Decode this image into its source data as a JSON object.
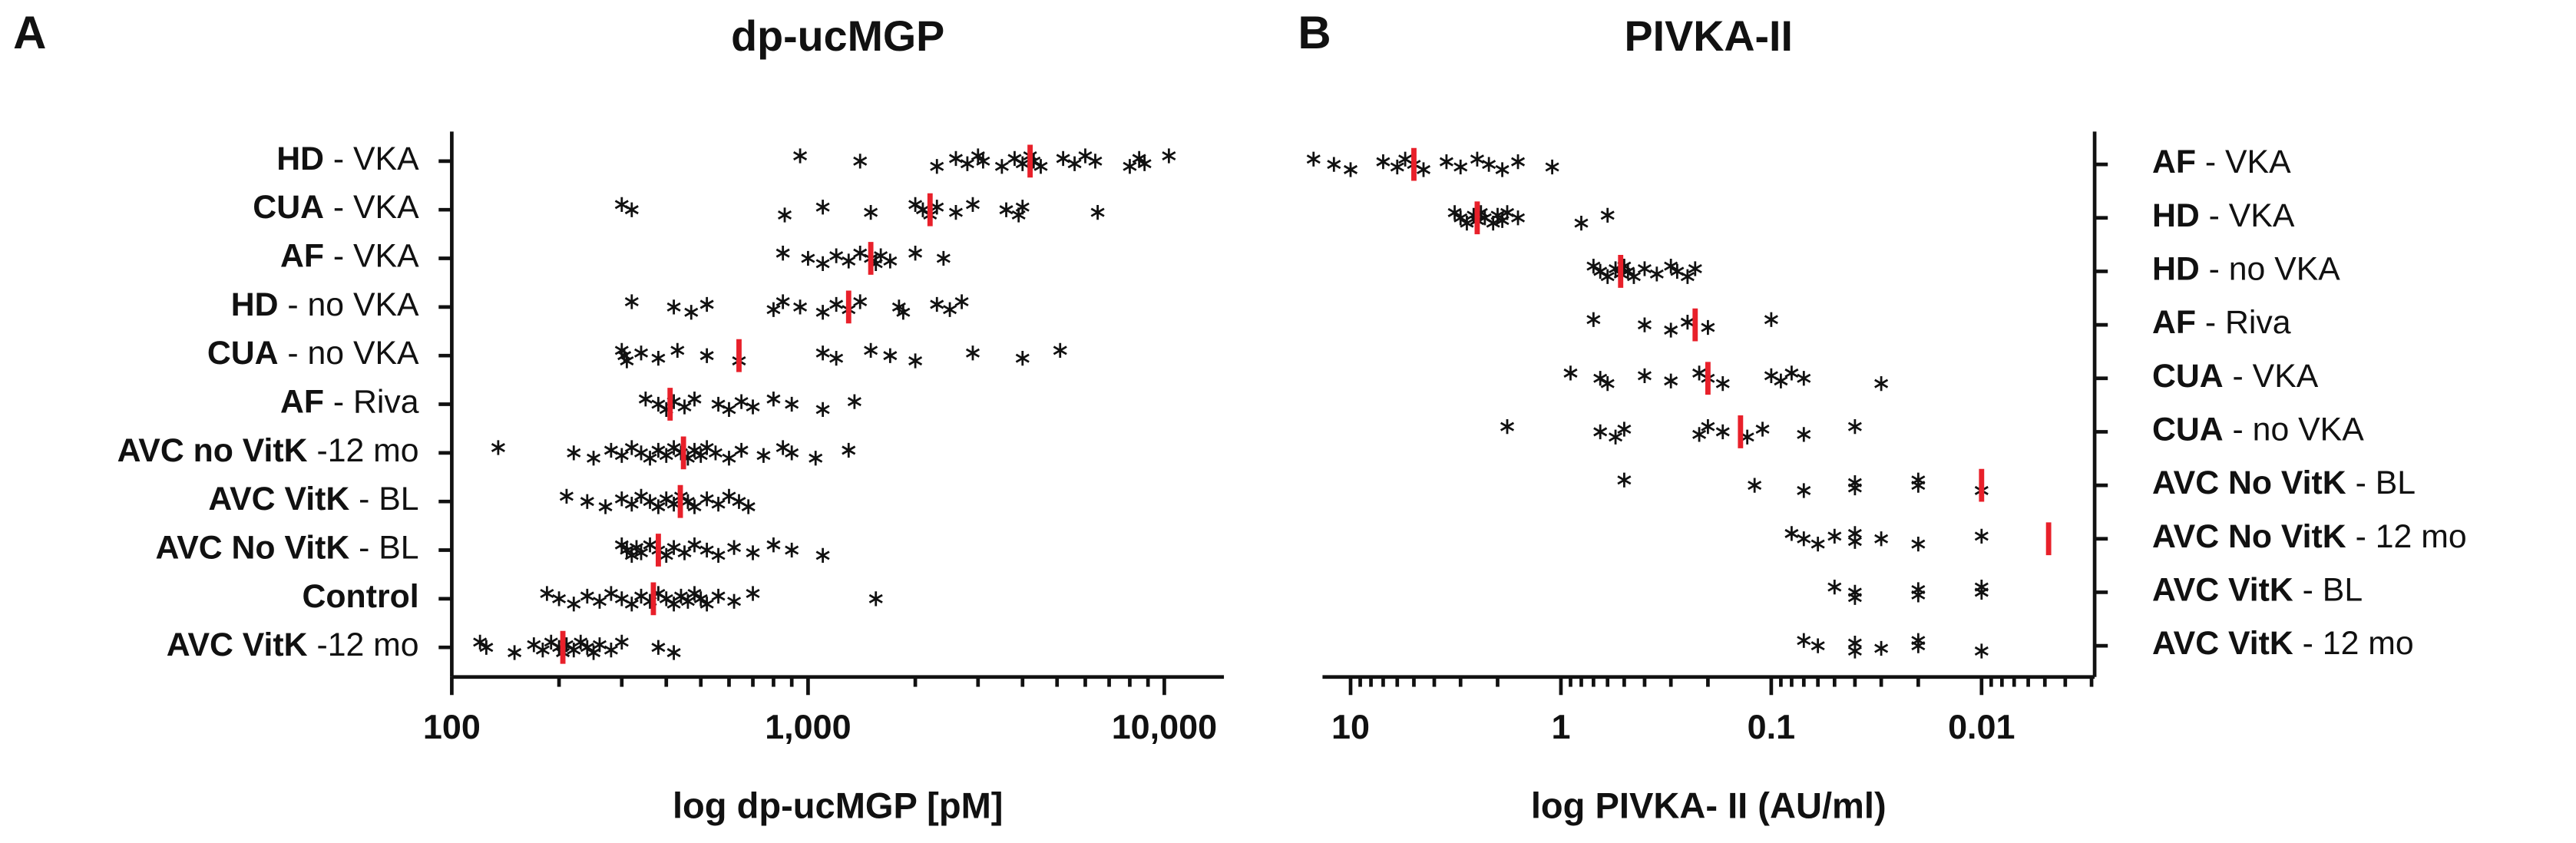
{
  "chart_data": [
    {
      "type": "strip",
      "panel_label": "A",
      "title": "dp-ucMGP",
      "xlabel": "log dp-ucMGP [pM]",
      "xscale": "log",
      "xlim": [
        100,
        14700
      ],
      "xticks": [
        100,
        {
          "value": 1000,
          "label": "1,000"
        },
        {
          "value": 10000,
          "label": "10,000"
        }
      ],
      "xminor_ticks": [
        200,
        300,
        400,
        500,
        600,
        700,
        800,
        900,
        2000,
        3000,
        4000,
        5000,
        6000,
        7000,
        8000,
        9000
      ],
      "label_side": "left",
      "point_color": "#111111",
      "median_color": "#e8202a",
      "categories": [
        [
          "HD",
          " - VKA"
        ],
        [
          "CUA",
          " - VKA"
        ],
        [
          "AF",
          " - VKA"
        ],
        [
          "HD",
          " - no VKA"
        ],
        [
          "CUA",
          " - no VKA"
        ],
        [
          "AF",
          " - Riva"
        ],
        [
          "AVC no VitK",
          " -12 mo"
        ],
        [
          "AVC VitK",
          " - BL"
        ],
        [
          "AVC No VitK",
          " - BL"
        ],
        [
          "Control",
          ""
        ],
        [
          "AVC VitK",
          " -12 mo"
        ]
      ],
      "points": [
        [
          950,
          1400,
          2300,
          2600,
          2800,
          3000,
          3100,
          3500,
          3800,
          4000,
          4200,
          4300,
          4500,
          5200,
          5600,
          6000,
          6400,
          8000,
          8500,
          8800,
          10300
        ],
        [
          300,
          320,
          860,
          1100,
          1500,
          2000,
          2100,
          2200,
          2300,
          2600,
          2900,
          3600,
          3900,
          4000,
          6500
        ],
        [
          850,
          1000,
          1100,
          1200,
          1300,
          1400,
          1500,
          1550,
          1600,
          1700,
          2000,
          2400
        ],
        [
          320,
          420,
          470,
          520,
          800,
          850,
          950,
          1100,
          1200,
          1300,
          1400,
          1800,
          1850,
          2300,
          2500,
          2700
        ],
        [
          300,
          305,
          310,
          340,
          380,
          430,
          520,
          640,
          1100,
          1200,
          1500,
          1700,
          2000,
          2900,
          4000,
          5100
        ],
        [
          350,
          380,
          400,
          420,
          450,
          480,
          560,
          600,
          650,
          700,
          800,
          900,
          1100,
          1350
        ],
        [
          135,
          220,
          250,
          280,
          300,
          320,
          340,
          360,
          380,
          400,
          420,
          440,
          460,
          480,
          500,
          520,
          550,
          600,
          650,
          750,
          850,
          900,
          1050,
          1300
        ],
        [
          210,
          240,
          270,
          300,
          320,
          340,
          360,
          380,
          400,
          420,
          440,
          460,
          480,
          520,
          560,
          600,
          640,
          680
        ],
        [
          300,
          310,
          320,
          330,
          340,
          360,
          380,
          400,
          420,
          450,
          480,
          520,
          560,
          620,
          700,
          800,
          900,
          1100
        ],
        [
          185,
          200,
          220,
          240,
          260,
          280,
          300,
          320,
          340,
          360,
          380,
          400,
          420,
          440,
          460,
          480,
          500,
          520,
          560,
          620,
          700,
          1550
        ],
        [
          120,
          125,
          150,
          170,
          180,
          190,
          200,
          205,
          210,
          220,
          230,
          240,
          250,
          260,
          280,
          300,
          380,
          420
        ]
      ],
      "medians": [
        4200,
        2200,
        1500,
        1300,
        640,
        410,
        447,
        438,
        380,
        368,
        205
      ]
    },
    {
      "type": "strip",
      "panel_label": "B",
      "title": "PIVKA-II",
      "xlabel": "log PIVKA- II (AU/ml)",
      "xscale": "log",
      "xlim": [
        13.6,
        0.0029
      ],
      "xticks": [
        10,
        1,
        0.1,
        0.01
      ],
      "xminor_ticks": [
        9,
        8,
        7,
        6,
        5,
        4,
        3,
        2,
        0.9,
        0.8,
        0.7,
        0.6,
        0.5,
        0.4,
        0.3,
        0.2,
        0.09,
        0.08,
        0.07,
        0.06,
        0.05,
        0.04,
        0.03,
        0.02,
        0.009,
        0.008,
        0.007,
        0.006,
        0.005,
        0.004,
        0.003
      ],
      "label_side": "right",
      "point_color": "#111111",
      "median_color": "#e8202a",
      "categories": [
        [
          "AF",
          " - VKA"
        ],
        [
          "HD",
          " - VKA"
        ],
        [
          "HD",
          " - no VKA"
        ],
        [
          "AF",
          " - Riva"
        ],
        [
          "CUA",
          " - VKA"
        ],
        [
          "CUA",
          " - no VKA"
        ],
        [
          "AVC No VitK",
          " - BL"
        ],
        [
          "AVC No VitK",
          " - 12 mo"
        ],
        [
          "AVC VitK",
          " - BL"
        ],
        [
          "AVC VitK",
          " - 12 mo"
        ]
      ],
      "points": [
        [
          15,
          12,
          10,
          7,
          6,
          5.5,
          5,
          4.5,
          3.5,
          3,
          2.5,
          2.2,
          1.9,
          1.6,
          1.1
        ],
        [
          3.2,
          3,
          2.8,
          2.6,
          2.5,
          2.4,
          2.3,
          2.1,
          2,
          1.9,
          1.8,
          1.6,
          0.8,
          0.6
        ],
        [
          0.7,
          0.65,
          0.6,
          0.55,
          0.52,
          0.5,
          0.48,
          0.45,
          0.4,
          0.35,
          0.3,
          0.28,
          0.25,
          0.23
        ],
        [
          0.7,
          0.4,
          0.3,
          0.25,
          0.2,
          0.1
        ],
        [
          0.9,
          0.65,
          0.6,
          0.4,
          0.3,
          0.22,
          0.2,
          0.17,
          0.1,
          0.09,
          0.08,
          0.07,
          0.03
        ],
        [
          1.8,
          0.65,
          0.55,
          0.5,
          0.22,
          0.2,
          0.17,
          0.13,
          0.11,
          0.07,
          0.04
        ],
        [
          0.5,
          0.12,
          0.07,
          0.04,
          0.04,
          0.02,
          0.02,
          0.01
        ],
        [
          0.08,
          0.07,
          0.06,
          0.05,
          0.04,
          0.04,
          0.03,
          0.02,
          0.01
        ],
        [
          0.05,
          0.04,
          0.04,
          0.02,
          0.02,
          0.01,
          0.01
        ],
        [
          0.07,
          0.06,
          0.04,
          0.04,
          0.03,
          0.02,
          0.02,
          0.01
        ]
      ],
      "medians": [
        5,
        2.5,
        0.52,
        0.23,
        0.2,
        0.14,
        0.01,
        0.0048,
        null,
        null
      ]
    }
  ]
}
